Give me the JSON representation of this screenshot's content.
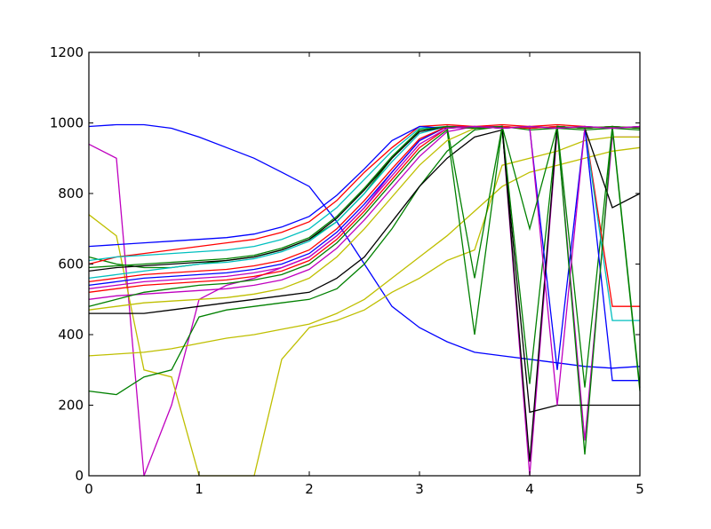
{
  "chart_data": {
    "type": "line",
    "title": "",
    "xlabel": "",
    "ylabel": "",
    "xlim": [
      0,
      5
    ],
    "ylim": [
      0,
      1200
    ],
    "xticks": [
      "0",
      "1",
      "2",
      "3",
      "4",
      "5"
    ],
    "yticks": [
      "0",
      "200",
      "400",
      "600",
      "800",
      "1000",
      "1200"
    ],
    "grid": false,
    "legend": "none",
    "colors": [
      "#0000ff",
      "#008000",
      "#ff0000",
      "#00bfbf",
      "#bf00bf",
      "#bfbf00",
      "#000000"
    ],
    "x": [
      0,
      0.25,
      0.5,
      0.75,
      1.0,
      1.25,
      1.5,
      1.75,
      2.0,
      2.25,
      2.5,
      2.75,
      3.0,
      3.25,
      3.5,
      3.75,
      4.0,
      4.25,
      4.5,
      4.75,
      5.0
    ],
    "series": [
      {
        "color": "#0000ff",
        "values": [
          990,
          995,
          995,
          985,
          960,
          930,
          900,
          860,
          820,
          720,
          600,
          480,
          420,
          380,
          350,
          340,
          330,
          320,
          310,
          305,
          310
        ]
      },
      {
        "color": "#bf00bf",
        "values": [
          940,
          900,
          0,
          200,
          500,
          540,
          560,
          590,
          620,
          680,
          760,
          860,
          950,
          990,
          990,
          990,
          0,
          980,
          100,
          960,
          960
        ]
      },
      {
        "color": "#bfbf00",
        "values": [
          740,
          680,
          300,
          280,
          0,
          0,
          0,
          330,
          420,
          440,
          470,
          520,
          560,
          610,
          640,
          880,
          900,
          920,
          950,
          960,
          960
        ]
      },
      {
        "color": "#bfbf00",
        "values": [
          340,
          345,
          350,
          360,
          375,
          390,
          400,
          415,
          430,
          460,
          500,
          560,
          620,
          680,
          750,
          820,
          860,
          880,
          900,
          920,
          930
        ]
      },
      {
        "color": "#008000",
        "values": [
          240,
          230,
          280,
          300,
          450,
          470,
          480,
          490,
          500,
          530,
          600,
          700,
          820,
          920,
          980,
          990,
          980,
          985,
          980,
          985,
          980
        ]
      },
      {
        "color": "#000000",
        "values": [
          460,
          460,
          460,
          470,
          480,
          490,
          500,
          510,
          520,
          560,
          620,
          720,
          820,
          900,
          960,
          980,
          180,
          200,
          200,
          200,
          200
        ]
      },
      {
        "color": "#008000",
        "values": [
          620,
          600,
          590,
          590,
          600,
          610,
          620,
          640,
          670,
          720,
          800,
          900,
          980,
          990,
          560,
          990,
          260,
          990,
          250,
          990,
          250
        ]
      },
      {
        "color": "#ff0000",
        "values": [
          600,
          620,
          630,
          640,
          650,
          660,
          670,
          690,
          720,
          780,
          860,
          930,
          990,
          995,
          990,
          995,
          990,
          995,
          990,
          480,
          480
        ]
      },
      {
        "color": "#00bfbf",
        "values": [
          560,
          570,
          580,
          590,
          600,
          605,
          615,
          635,
          665,
          720,
          800,
          890,
          970,
          990,
          985,
          990,
          985,
          990,
          985,
          440,
          440
        ]
      },
      {
        "color": "#0000ff",
        "values": [
          540,
          550,
          560,
          565,
          570,
          575,
          585,
          600,
          630,
          690,
          770,
          860,
          950,
          990,
          985,
          990,
          985,
          300,
          985,
          270,
          270
        ]
      },
      {
        "color": "#ff0000",
        "values": [
          520,
          530,
          540,
          545,
          550,
          555,
          565,
          580,
          610,
          670,
          750,
          840,
          930,
          985,
          990,
          985,
          990,
          985,
          990,
          985,
          990
        ]
      },
      {
        "color": "#000000",
        "values": [
          580,
          590,
          595,
          600,
          605,
          610,
          620,
          640,
          670,
          730,
          810,
          900,
          975,
          990,
          985,
          990,
          40,
          990,
          985,
          760,
          800
        ]
      },
      {
        "color": "#bf00bf",
        "values": [
          500,
          510,
          515,
          520,
          525,
          530,
          540,
          555,
          585,
          645,
          725,
          815,
          905,
          975,
          990,
          985,
          990,
          200,
          985,
          990,
          985
        ]
      },
      {
        "color": "#008000",
        "values": [
          480,
          500,
          520,
          530,
          540,
          545,
          555,
          570,
          600,
          660,
          740,
          830,
          920,
          980,
          400,
          985,
          990,
          985,
          60,
          985,
          240
        ]
      },
      {
        "color": "#00bfbf",
        "values": [
          610,
          620,
          625,
          630,
          635,
          640,
          650,
          670,
          700,
          760,
          840,
          920,
          985,
          990,
          985,
          990,
          985,
          990,
          985,
          990,
          985
        ]
      },
      {
        "color": "#0000ff",
        "values": [
          650,
          655,
          660,
          665,
          670,
          675,
          685,
          705,
          735,
          795,
          870,
          950,
          990,
          985,
          990,
          985,
          990,
          985,
          990,
          985,
          990
        ]
      },
      {
        "color": "#bfbf00",
        "values": [
          470,
          480,
          490,
          495,
          500,
          505,
          515,
          530,
          560,
          620,
          700,
          790,
          880,
          950,
          985,
          990,
          985,
          990,
          985,
          990,
          985
        ]
      },
      {
        "color": "#ff0000",
        "values": [
          550,
          560,
          570,
          575,
          580,
          585,
          595,
          610,
          640,
          700,
          780,
          870,
          955,
          990,
          985,
          990,
          985,
          990,
          985,
          990,
          985
        ]
      },
      {
        "color": "#008000",
        "values": [
          590,
          595,
          600,
          605,
          610,
          615,
          625,
          645,
          675,
          735,
          815,
          905,
          980,
          990,
          985,
          990,
          700,
          990,
          985,
          990,
          985
        ]
      },
      {
        "color": "#bf00bf",
        "values": [
          530,
          540,
          550,
          555,
          560,
          565,
          575,
          590,
          620,
          680,
          760,
          850,
          940,
          985,
          990,
          985,
          990,
          985,
          990,
          985,
          990
        ]
      }
    ]
  }
}
